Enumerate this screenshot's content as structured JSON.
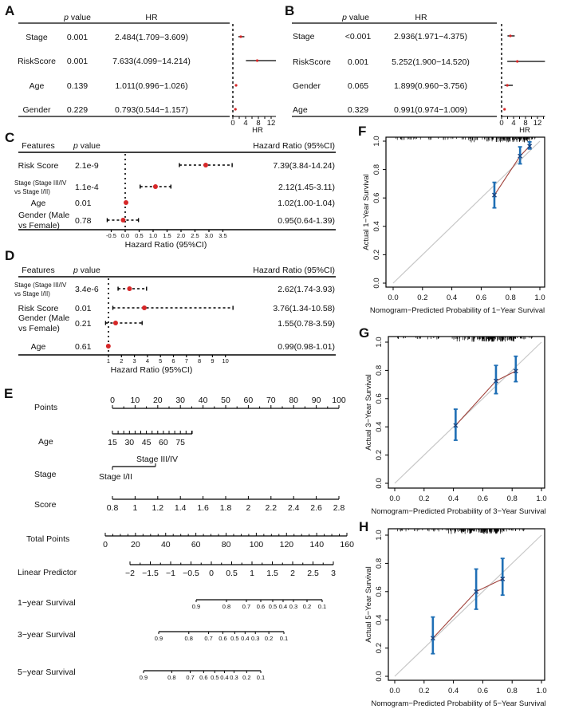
{
  "chart_data": [
    {
      "type": "forest",
      "letter": "A",
      "columns": {
        "p": "p",
        "p_suffix": " value",
        "hr": "HR"
      },
      "xlabel": "HR",
      "xticks": [
        0,
        4,
        8,
        12
      ],
      "xlim": [
        0,
        13.5
      ],
      "rows": [
        {
          "label": "Stage",
          "p": "0.001",
          "hr_text": "2.484(1.709−3.609)",
          "hr": 2.484,
          "lo": 1.709,
          "hi": 3.609
        },
        {
          "label": "RiskScore",
          "p": "0.001",
          "hr_text": "7.633(4.099−14.214)",
          "hr": 7.633,
          "lo": 4.099,
          "hi": 14.214
        },
        {
          "label": "Age",
          "p": "0.139",
          "hr_text": "1.011(0.996−1.026)",
          "hr": 1.011,
          "lo": 0.996,
          "hi": 1.026
        },
        {
          "label": "Gender",
          "p": "0.229",
          "hr_text": "0.793(0.544−1.157)",
          "hr": 0.793,
          "lo": 0.544,
          "hi": 1.157
        }
      ],
      "colors": {
        "point": "#d62728",
        "bar": "#000000"
      }
    },
    {
      "type": "forest",
      "letter": "B",
      "columns": {
        "p": "p",
        "p_suffix": " value",
        "hr": "HR"
      },
      "xlabel": "HR",
      "xticks": [
        0,
        4,
        8,
        12
      ],
      "xlim": [
        0,
        14.5
      ],
      "rows": [
        {
          "label": "Stage",
          "p": "<0.001",
          "hr_text": "2.936(1.971−4.375)",
          "hr": 2.936,
          "lo": 1.971,
          "hi": 4.375
        },
        {
          "label": "RiskScore",
          "p": "0.001",
          "hr_text": "5.252(1.900−14.520)",
          "hr": 5.252,
          "lo": 1.9,
          "hi": 14.52
        },
        {
          "label": "Gender",
          "p": "0.065",
          "hr_text": "1.899(0.960−3.756)",
          "hr": 1.899,
          "lo": 0.96,
          "hi": 3.756
        },
        {
          "label": "Age",
          "p": "0.329",
          "hr_text": "0.991(0.974−1.009)",
          "hr": 0.991,
          "lo": 0.974,
          "hi": 1.009
        }
      ],
      "colors": {
        "point": "#d62728",
        "bar": "#000000"
      }
    },
    {
      "type": "forest",
      "letter": "C",
      "scale": "log2",
      "columns": {
        "features": "Features",
        "p": "p",
        "p_suffix": " value",
        "hr": "Hazard Ratio (95%CI)"
      },
      "xlabel": "Hazard Ratio (95%CI)",
      "xticks": [
        -0.5,
        0,
        0.5,
        1,
        1.5,
        2,
        2.5,
        3,
        3.5
      ],
      "xtick_labels": [
        "-0.5",
        "0.0",
        "0.5",
        "1.0",
        "1.5",
        "2.0",
        "2.5",
        "3.0",
        "3.5"
      ],
      "rows": [
        {
          "label": [
            "Risk Score"
          ],
          "p": "2.1e-9",
          "hr_text": "7.39(3.84-14.24)",
          "hr": 7.39,
          "lo": 3.84,
          "hi": 14.24
        },
        {
          "label": [
            "Stage (Stage III/IV",
            "vs Stage I/II)"
          ],
          "p": "1.1e-4",
          "hr_text": "2.12(1.45-3.11)",
          "hr": 2.12,
          "lo": 1.45,
          "hi": 3.11
        },
        {
          "label": [
            "Age"
          ],
          "p": "0.01",
          "hr_text": "1.02(1.00-1.04)",
          "hr": 1.02,
          "lo": 1.0,
          "hi": 1.04
        },
        {
          "label": [
            "Gender (Male",
            "vs Female)"
          ],
          "p": "0.78",
          "hr_text": "0.95(0.64-1.39)",
          "hr": 0.95,
          "lo": 0.64,
          "hi": 1.39
        }
      ],
      "colors": {
        "point": "#d62728",
        "bar": "#000000"
      }
    },
    {
      "type": "forest",
      "letter": "D",
      "scale": "linear",
      "columns": {
        "features": "Features",
        "p": "p",
        "p_suffix": " value",
        "hr": "Hazard Ratio (95%CI)"
      },
      "xlabel": "Hazard Ratio (95%CI)",
      "xticks": [
        1,
        2,
        3,
        4,
        5,
        6,
        7,
        8,
        9,
        10
      ],
      "xtick_labels": [
        "1",
        "2",
        "3",
        "4",
        "5",
        "6",
        "7",
        "8",
        "9",
        "10"
      ],
      "rows": [
        {
          "label": [
            "Stage (Stage III/IV",
            "vs Stage I/II)"
          ],
          "p": "3.4e-6",
          "hr_text": "2.62(1.74-3.93)",
          "hr": 2.62,
          "lo": 1.74,
          "hi": 3.93
        },
        {
          "label": [
            "Risk Score"
          ],
          "p": "0.01",
          "hr_text": "3.76(1.34-10.58)",
          "hr": 3.76,
          "lo": 1.34,
          "hi": 10.58
        },
        {
          "label": [
            "Gender (Male",
            "vs Female)"
          ],
          "p": "0.21",
          "hr_text": "1.55(0.78-3.59)",
          "hr": 1.55,
          "lo": 0.78,
          "hi": 3.59
        },
        {
          "label": [
            "Age"
          ],
          "p": "0.61",
          "hr_text": "0.99(0.98-1.01)",
          "hr": 0.99,
          "lo": 0.98,
          "hi": 1.01
        }
      ],
      "colors": {
        "point": "#d62728",
        "bar": "#000000"
      }
    },
    {
      "type": "nomogram",
      "letter": "E",
      "axes": [
        {
          "label": "Points",
          "ticks": [
            "0",
            "10",
            "20",
            "30",
            "40",
            "50",
            "60",
            "70",
            "80",
            "90",
            "100"
          ]
        },
        {
          "label": "Age",
          "ticks": [
            "15",
            "30",
            "45",
            "60",
            "75"
          ]
        },
        {
          "label": "Stage",
          "categories": [
            "Stage I/II",
            "Stage III/IV"
          ],
          "points": [
            0,
            19
          ]
        },
        {
          "label": "Score",
          "ticks": [
            "0.8",
            "1",
            "1.2",
            "1.4",
            "1.6",
            "1.8",
            "2",
            "2.2",
            "2.4",
            "2.6",
            "2.8"
          ]
        },
        {
          "label": "Total Points",
          "ticks": [
            "0",
            "20",
            "40",
            "60",
            "80",
            "100",
            "120",
            "140",
            "160"
          ]
        },
        {
          "label": "Linear Predictor",
          "ticks": [
            "−2",
            "−1.5",
            "−1",
            "−0.5",
            "0",
            "0.5",
            "1",
            "1.5",
            "2",
            "2.5",
            "3"
          ]
        },
        {
          "label": "1−year Survival",
          "ticks": [
            "0.9",
            "0.8",
            "0.7",
            "0.6",
            "0.5",
            "0.4",
            "0.3",
            "0.2",
            "0.1"
          ]
        },
        {
          "label": "3−year Survival",
          "ticks": [
            "0.9",
            "0.8",
            "0.7",
            "0.6",
            "0.5",
            "0.4",
            "0.3",
            "0.2",
            "0.1"
          ]
        },
        {
          "label": "5−year Survival",
          "ticks": [
            "0.9",
            "0.8",
            "0.7",
            "0.6",
            "0.5",
            "0.4",
            "0.3",
            "0.2",
            "0.1"
          ]
        }
      ]
    },
    {
      "type": "calibration",
      "letter": "F",
      "xlabel": "Nomogram−Predicted Probability of 1−Year Survival",
      "ylabel": "Actual 1−Year Survival",
      "xlim": [
        0,
        1
      ],
      "ylim": [
        0,
        1
      ],
      "tick_labels": [
        "0.0",
        "0.2",
        "0.4",
        "0.6",
        "0.8",
        "1.0"
      ],
      "points": [
        {
          "x": 0.69,
          "y": 0.62,
          "lo": 0.53,
          "hi": 0.71
        },
        {
          "x": 0.865,
          "y": 0.895,
          "lo": 0.84,
          "hi": 0.96
        },
        {
          "x": 0.93,
          "y": 0.965,
          "lo": 0.945,
          "hi": 0.995
        }
      ],
      "colors": {
        "errorbar": "#1f6fb5",
        "line": "#a0413a",
        "diagonal": "#c8c8c8"
      }
    },
    {
      "type": "calibration",
      "letter": "G",
      "xlabel": "Nomogram−Predicted Probability of 3−Year Survival",
      "ylabel": "Actual 3−Year Survival",
      "xlim": [
        0,
        1
      ],
      "ylim": [
        0,
        1
      ],
      "tick_labels": [
        "0.0",
        "0.2",
        "0.4",
        "0.6",
        "0.8",
        "1.0"
      ],
      "points": [
        {
          "x": 0.415,
          "y": 0.41,
          "lo": 0.305,
          "hi": 0.525
        },
        {
          "x": 0.69,
          "y": 0.725,
          "lo": 0.635,
          "hi": 0.835
        },
        {
          "x": 0.825,
          "y": 0.795,
          "lo": 0.72,
          "hi": 0.9
        }
      ],
      "colors": {
        "errorbar": "#1f6fb5",
        "line": "#a0413a",
        "diagonal": "#c8c8c8"
      }
    },
    {
      "type": "calibration",
      "letter": "H",
      "xlabel": "Nomogram−Predicted Probability of 5−Year Survival",
      "ylabel": "Actual 5−Year Survival",
      "xlim": [
        0,
        1
      ],
      "ylim": [
        0,
        1
      ],
      "tick_labels": [
        "0.0",
        "0.2",
        "0.4",
        "0.6",
        "0.8",
        "1.0"
      ],
      "points": [
        {
          "x": 0.26,
          "y": 0.27,
          "lo": 0.16,
          "hi": 0.42
        },
        {
          "x": 0.555,
          "y": 0.6,
          "lo": 0.475,
          "hi": 0.76
        },
        {
          "x": 0.735,
          "y": 0.69,
          "lo": 0.575,
          "hi": 0.835
        }
      ],
      "colors": {
        "errorbar": "#1f6fb5",
        "line": "#a0413a",
        "diagonal": "#c8c8c8"
      }
    }
  ]
}
